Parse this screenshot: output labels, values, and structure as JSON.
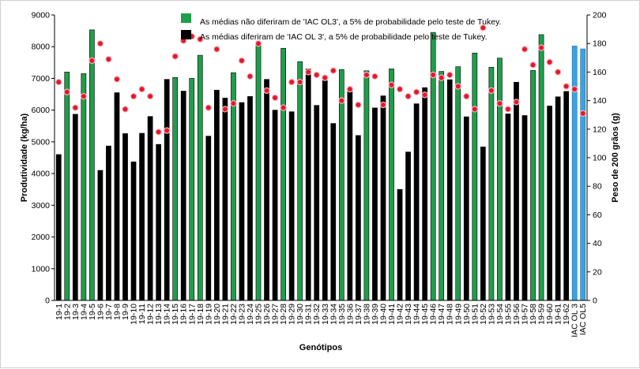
{
  "chart_data": {
    "type": "bar",
    "xlabel": "Genótipos",
    "ylabel": "Produtividade (kg/ha)",
    "y2label": "Peso de 200 grãos (g)",
    "ylim": [
      0,
      9000
    ],
    "y2lim": [
      0,
      200
    ],
    "yticks": [
      "0",
      "1000",
      "2000",
      "3000",
      "4000",
      "5000",
      "6000",
      "7000",
      "8000",
      "9000"
    ],
    "y2ticks": [
      "0",
      "20",
      "40",
      "60",
      "80",
      "100",
      "120",
      "140",
      "160",
      "180",
      "200"
    ],
    "legend": [
      {
        "label": "As médias não diferiram de 'IAC OL3', a 5% de probabilidade pelo teste de Tukey.",
        "color": "#1f9e4a"
      },
      {
        "label": "As médias diferiram de 'IAC OL 3', a 5% de probabilidade pelo teste de Tukey.",
        "color": "#000000"
      }
    ],
    "colors": {
      "not_different": "#1f9e4a",
      "different": "#000000",
      "check": "#3aa2e0",
      "marker": "#e3182d"
    },
    "categories": [
      "19-1",
      "19-2",
      "19-3",
      "19-4",
      "19-5",
      "19-6",
      "19-7",
      "19-8",
      "19-9",
      "19-10",
      "19-11",
      "19-12",
      "19-13",
      "19-14",
      "19-15",
      "19-16",
      "19-17",
      "19-18",
      "19-19",
      "19-20",
      "19-21",
      "19-22",
      "19-23",
      "19-24",
      "19-25",
      "19-26",
      "19-27",
      "19-28",
      "19-29",
      "19-30",
      "19-31",
      "19-32",
      "19-33",
      "19-34",
      "19-35",
      "19-36",
      "19-37",
      "19-38",
      "19-39",
      "19-40",
      "19-41",
      "19-42",
      "19-43",
      "19-44",
      "19-45",
      "19-46",
      "19-47",
      "19-48",
      "19-49",
      "19-50",
      "19-51",
      "19-52",
      "19-53",
      "19-54",
      "19-55",
      "19-56",
      "19-57",
      "19-58",
      "19-59",
      "19-60",
      "19-61",
      "19-62",
      "IAC OL 3",
      "IAC OL5"
    ],
    "groups": [
      "D",
      "N",
      "D",
      "N",
      "N",
      "D",
      "D",
      "D",
      "D",
      "D",
      "D",
      "D",
      "D",
      "D",
      "N",
      "D",
      "N",
      "N",
      "D",
      "D",
      "D",
      "N",
      "D",
      "D",
      "N",
      "D",
      "D",
      "N",
      "D",
      "N",
      "D",
      "D",
      "D",
      "D",
      "N",
      "D",
      "D",
      "N",
      "D",
      "D",
      "N",
      "D",
      "D",
      "D",
      "D",
      "N",
      "N",
      "D",
      "N",
      "D",
      "N",
      "D",
      "N",
      "N",
      "D",
      "D",
      "D",
      "N",
      "N",
      "D",
      "D",
      "D",
      "C",
      "C"
    ],
    "series": [
      {
        "name": "Produtividade (kg/ha)",
        "axis": "left",
        "values": [
          4600,
          7200,
          5870,
          7150,
          8530,
          4100,
          4870,
          6550,
          5260,
          4370,
          5270,
          5800,
          4920,
          6970,
          7030,
          6600,
          7000,
          7730,
          5180,
          6630,
          6380,
          7180,
          6240,
          6430,
          8050,
          6970,
          6000,
          7950,
          5950,
          7530,
          7300,
          6150,
          6930,
          5580,
          7280,
          6610,
          5200,
          7240,
          6070,
          6450,
          7300,
          3500,
          4680,
          6200,
          6710,
          8450,
          7220,
          6960,
          7370,
          5790,
          7800,
          4840,
          7350,
          7640,
          5880,
          6880,
          5830,
          7250,
          8380,
          6130,
          6420,
          6590,
          8020,
          7930
        ]
      },
      {
        "name": "Peso de 200 grãos (g)",
        "axis": "right",
        "values": [
          153,
          146,
          135,
          143,
          168,
          180,
          169,
          155,
          134,
          143,
          148,
          143,
          118,
          119,
          171,
          182,
          185,
          183,
          135,
          176,
          134,
          138,
          168,
          157,
          180,
          147,
          142,
          135,
          153,
          153,
          160,
          158,
          156,
          161,
          140,
          148,
          137,
          158,
          157,
          137,
          151,
          148,
          143,
          146,
          144,
          158,
          156,
          158,
          150,
          143,
          134,
          191,
          147,
          138,
          134,
          139,
          176,
          165,
          177,
          167,
          160,
          150,
          148,
          131
        ]
      }
    ]
  }
}
